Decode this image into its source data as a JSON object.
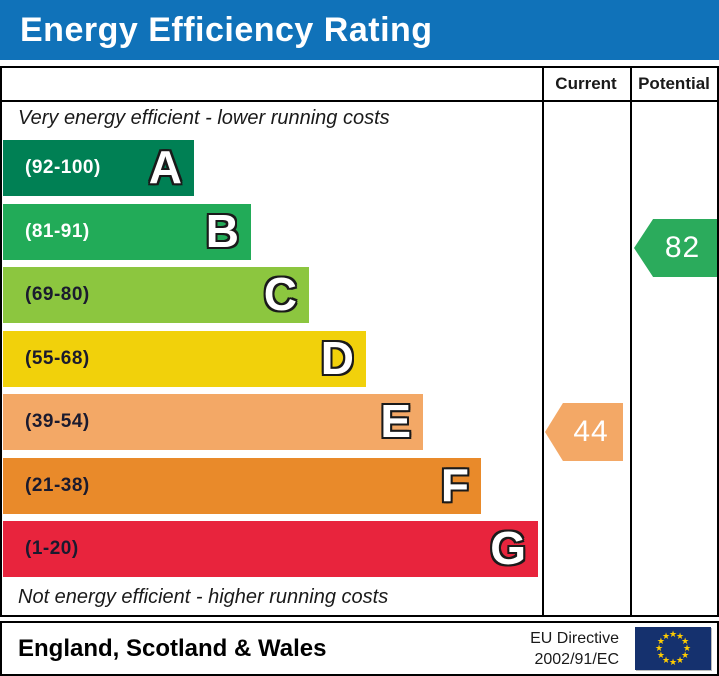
{
  "title": "Energy Efficiency Rating",
  "columns": {
    "current": "Current",
    "potential": "Potential"
  },
  "captions": {
    "top": "Very energy efficient - lower running costs",
    "bottom": "Not energy efficient - higher running costs"
  },
  "bands": [
    {
      "letter": "A",
      "range": "(92-100)",
      "color": "#008054",
      "text_color": "#ffffff"
    },
    {
      "letter": "B",
      "range": "(81-91)",
      "color": "#22ab58",
      "text_color": "#ffffff"
    },
    {
      "letter": "C",
      "range": "(69-80)",
      "color": "#8cc63f",
      "text_color": "#1a1a2e"
    },
    {
      "letter": "D",
      "range": "(55-68)",
      "color": "#f1d10b",
      "text_color": "#1a1a2e"
    },
    {
      "letter": "E",
      "range": "(39-54)",
      "color": "#f3a866",
      "text_color": "#1a1a2e"
    },
    {
      "letter": "F",
      "range": "(21-38)",
      "color": "#e98a2a",
      "text_color": "#1a1a2e"
    },
    {
      "letter": "G",
      "range": "(1-20)",
      "color": "#e8243d",
      "text_color": "#1a1a2e"
    }
  ],
  "markers": {
    "current": {
      "value": "44",
      "color": "#f3a866",
      "band": "E"
    },
    "potential": {
      "value": "82",
      "color": "#2bab5c",
      "band": "B"
    }
  },
  "footer": {
    "region": "England, Scotland & Wales",
    "directive_line1": "EU Directive",
    "directive_line2": "2002/91/EC"
  },
  "flag": {
    "background": "#15316e",
    "star_color": "#ffcc00",
    "star_count": 12,
    "star_glyph": "★"
  },
  "theme": {
    "title_bg": "#1072b9",
    "title_text": "#ffffff",
    "border": "#000000",
    "caption_text": "#1a1a1a"
  },
  "chart_data": {
    "type": "bar",
    "title": "Energy Efficiency Rating",
    "orientation": "horizontal",
    "categories": [
      "A",
      "B",
      "C",
      "D",
      "E",
      "F",
      "G"
    ],
    "band_ranges": [
      [
        92,
        100
      ],
      [
        81,
        91
      ],
      [
        69,
        80
      ],
      [
        55,
        68
      ],
      [
        39,
        54
      ],
      [
        21,
        38
      ],
      [
        1,
        20
      ]
    ],
    "band_colors": [
      "#008054",
      "#22ab58",
      "#8cc63f",
      "#f1d10b",
      "#f3a866",
      "#e98a2a",
      "#e8243d"
    ],
    "series": [
      {
        "name": "Current",
        "value": 44,
        "band": "E"
      },
      {
        "name": "Potential",
        "value": 82,
        "band": "B"
      }
    ],
    "scale": [
      1,
      100
    ],
    "xlabel": "",
    "ylabel": "",
    "legend": [
      "Current",
      "Potential"
    ],
    "annotations": [
      "Very energy efficient - lower running costs",
      "Not energy efficient - higher running costs",
      "England, Scotland & Wales",
      "EU Directive 2002/91/EC"
    ]
  }
}
